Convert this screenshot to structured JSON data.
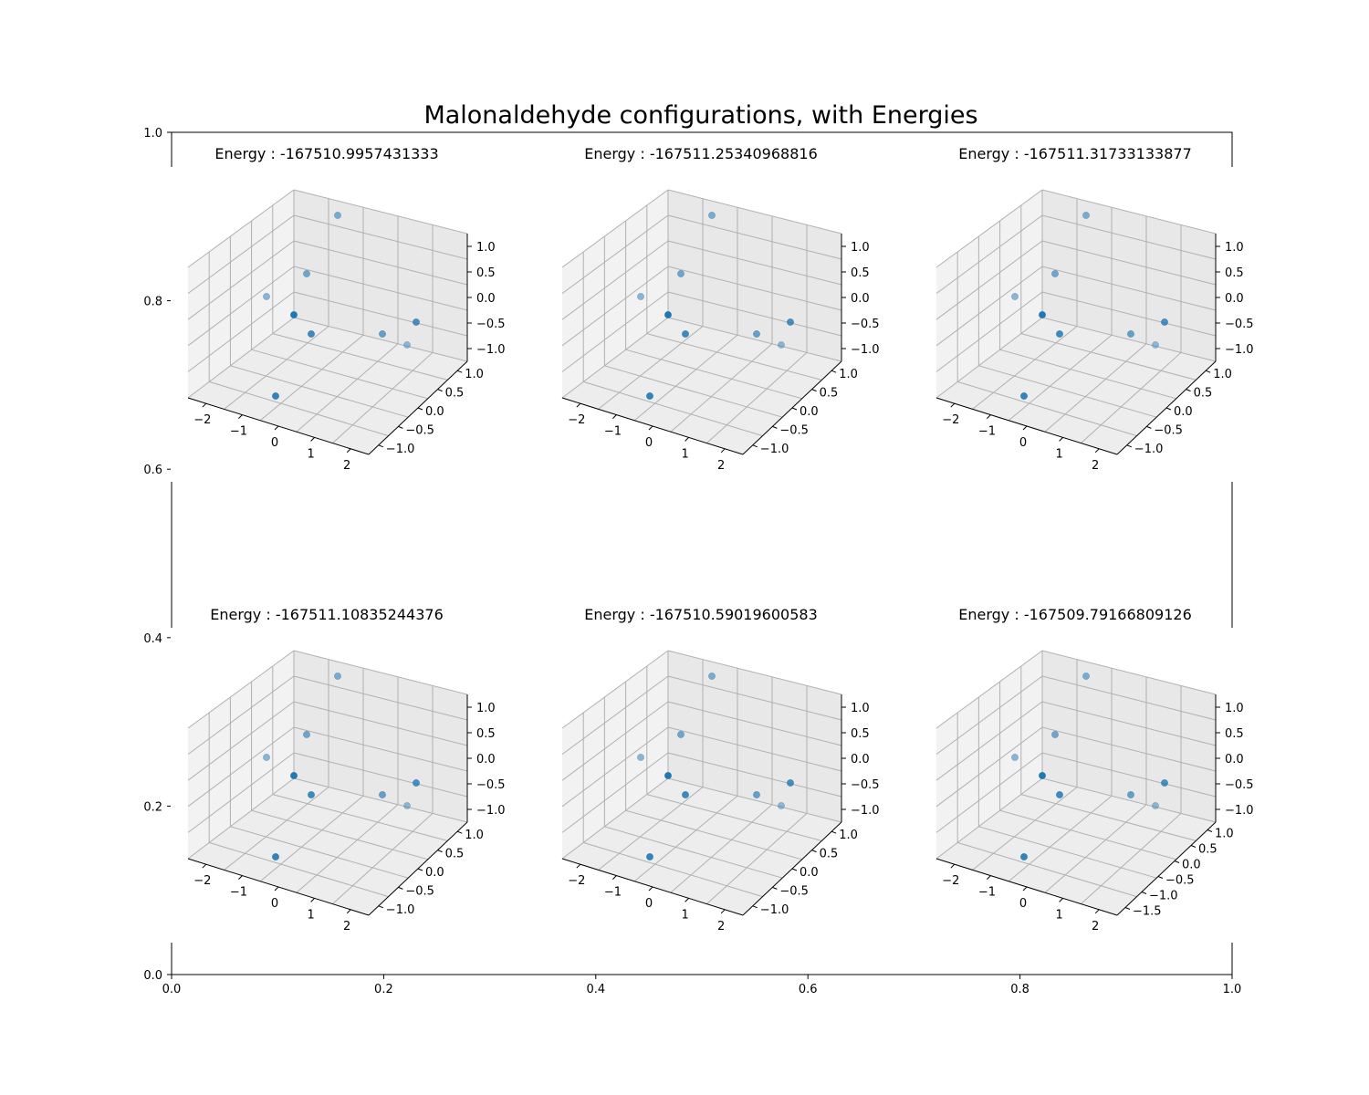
{
  "chart_data": {
    "type": "scatter",
    "title": "Malonaldehyde configurations, with Energies",
    "outer_axes": {
      "x_ticks": [
        "0.0",
        "0.2",
        "0.4",
        "0.6",
        "0.8",
        "1.0"
      ],
      "y_ticks": [
        "0.0",
        "0.2",
        "0.4",
        "0.6",
        "0.8",
        "1.0"
      ],
      "xlim": [
        0,
        1
      ],
      "ylim": [
        0,
        1
      ]
    },
    "subplots": [
      {
        "title": "Energy : -167510.9957431333",
        "x_ticks": [
          "−2",
          "−1",
          "0",
          "1",
          "2"
        ],
        "y_ticks": [
          "1.0",
          "0.5",
          "0.0",
          "−0.5",
          "−1.0"
        ],
        "z_ticks": [
          "1.0",
          "0.5",
          "0.0",
          "−0.5",
          "−1.0"
        ]
      },
      {
        "title": "Energy : -167511.25340968816",
        "x_ticks": [
          "−2",
          "−1",
          "0",
          "1",
          "2"
        ],
        "y_ticks": [
          "1.0",
          "0.5",
          "0.0",
          "−0.5",
          "−1.0"
        ],
        "z_ticks": [
          "1.0",
          "0.5",
          "0.0",
          "−0.5",
          "−1.0"
        ]
      },
      {
        "title": "Energy : -167511.31733133877",
        "x_ticks": [
          "−2",
          "−1",
          "0",
          "1",
          "2"
        ],
        "y_ticks": [
          "1.0",
          "0.5",
          "0.0",
          "−0.5",
          "−1.0"
        ],
        "z_ticks": [
          "1.0",
          "0.5",
          "0.0",
          "−0.5",
          "−1.0"
        ]
      },
      {
        "title": "Energy : -167511.10835244376",
        "x_ticks": [
          "−2",
          "−1",
          "0",
          "1",
          "2"
        ],
        "y_ticks": [
          "1.0",
          "0.5",
          "0.0",
          "−0.5",
          "−1.0"
        ],
        "z_ticks": [
          "1.0",
          "0.5",
          "0.0",
          "−0.5",
          "−1.0"
        ]
      },
      {
        "title": "Energy : -167510.59019600583",
        "x_ticks": [
          "−2",
          "−1",
          "0",
          "1",
          "2"
        ],
        "y_ticks": [
          "1.0",
          "0.5",
          "0.0",
          "−0.5",
          "−1.0"
        ],
        "z_ticks": [
          "1.0",
          "0.5",
          "0.0",
          "−0.5",
          "−1.0"
        ]
      },
      {
        "title": "Energy : -167509.79166809126",
        "x_ticks": [
          "−2",
          "−1",
          "0",
          "1",
          "2"
        ],
        "y_ticks": [
          "1.0",
          "0.5",
          "0.0",
          "−0.5",
          "−1.0",
          "−1.5"
        ],
        "z_ticks": [
          "1.0",
          "0.5",
          "0.0",
          "−0.5",
          "−1.0"
        ]
      }
    ],
    "point_color": "#1f77b4"
  }
}
